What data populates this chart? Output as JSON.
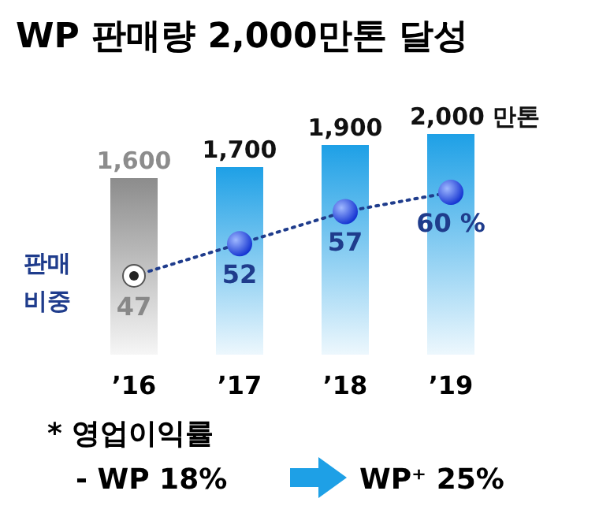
{
  "chart_data": {
    "type": "bar",
    "title": "WP 판매량 2,000만톤 달성",
    "categories": [
      "’16",
      "’17",
      "’18",
      "’19"
    ],
    "series": [
      {
        "colors": [
          "#8c8c8c",
          "#1ea0e6",
          "#1ea0e6",
          "#1ea0e6"
        ],
        "values": [
          1600,
          1700,
          1900,
          2000
        ],
        "value_labels": [
          "1,600",
          "1,700",
          "1,900",
          "2,000 만톤"
        ]
      },
      {
        "type": "line",
        "axis": "y2",
        "name": "판매 비중",
        "color": "#1f3c8c",
        "values": [
          47,
          52,
          57,
          60
        ],
        "value_labels": [
          "47",
          "52",
          "57",
          "60 %"
        ]
      }
    ],
    "line_style": "dotted",
    "marker": "circle",
    "annotations": [
      "* 영업이익률",
      "- WP 18%",
      "WP⁺ 25%"
    ]
  }
}
